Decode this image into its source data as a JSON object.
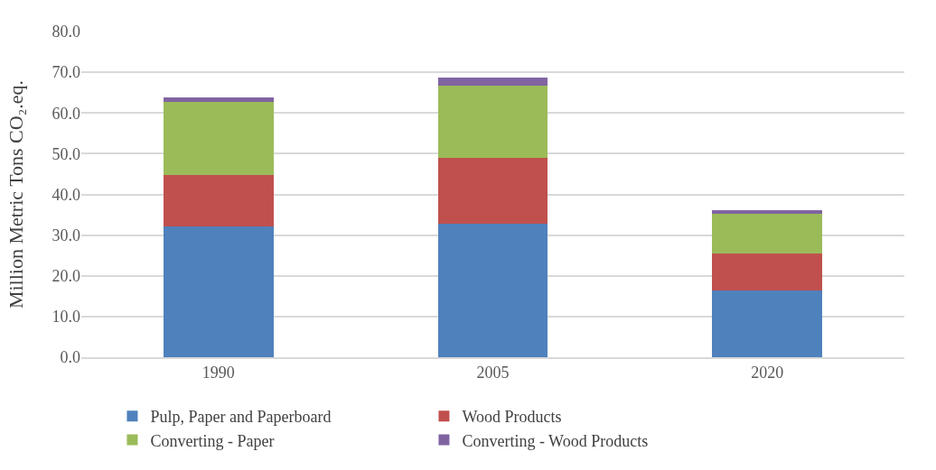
{
  "chart_data": {
    "type": "bar",
    "stacked": true,
    "ylabel": "Million Metric Tons CO₂.eq.",
    "categories": [
      "1990",
      "2005",
      "2020"
    ],
    "series": [
      {
        "name": "Pulp, Paper and Paperboard",
        "color": "#4f81bd",
        "values": [
          32.1,
          32.8,
          16.5
        ]
      },
      {
        "name": "Wood Products",
        "color": "#c0504d",
        "values": [
          12.6,
          16.2,
          9.0
        ]
      },
      {
        "name": "Converting - Paper",
        "color": "#9bbb59",
        "values": [
          18.1,
          17.8,
          9.7
        ]
      },
      {
        "name": "Converting - Wood Products",
        "color": "#8064a2",
        "values": [
          1.1,
          1.9,
          1.0
        ]
      }
    ],
    "ylim": [
      0,
      80
    ],
    "yticks": [
      {
        "value": 0,
        "label": "0.0"
      },
      {
        "value": 10,
        "label": "10.0"
      },
      {
        "value": 20,
        "label": "20.0"
      },
      {
        "value": 30,
        "label": "30.0"
      },
      {
        "value": 40,
        "label": "40.0"
      },
      {
        "value": 50,
        "label": "50.0"
      },
      {
        "value": 60,
        "label": "60.0"
      },
      {
        "value": 70,
        "label": "70.0"
      },
      {
        "value": 80,
        "label": "80.0"
      }
    ],
    "grid": "y",
    "legend": "bottom"
  }
}
